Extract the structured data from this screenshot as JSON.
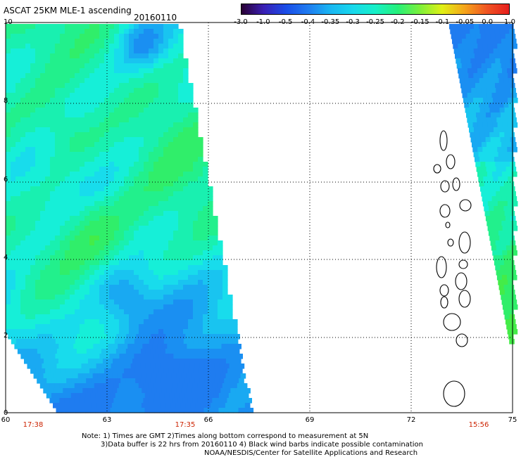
{
  "header": {
    "title": "ASCAT 25KM MLE-1 ascending",
    "date": "20160110"
  },
  "colorbar": {
    "ticks": [
      "-3.0",
      "-1.0",
      "-0.5",
      "-0.4",
      "-0.35",
      "-0.3",
      "-0.25",
      "-0.2",
      "-0.15",
      "-0.1",
      "-0.05",
      "0.0",
      "1.0"
    ],
    "colors": [
      "#2a0033",
      "#3a1fb5",
      "#1a4de8",
      "#1f7cf0",
      "#19b7f2",
      "#18d8ec",
      "#16f0c8",
      "#25f07a",
      "#7cf03a",
      "#e0f015",
      "#f5a51a",
      "#f05522",
      "#e61e1e"
    ]
  },
  "map": {
    "lat_labels": [
      "10",
      "8",
      "6",
      "4",
      "2",
      "0"
    ],
    "lon_labels": [
      "60",
      "63",
      "66",
      "69",
      "72",
      "75"
    ],
    "time_labels": [
      "17:38",
      "17:35",
      "15:56"
    ]
  },
  "notes": {
    "line1": "Note: 1) Times are GMT 2)Times along bottom correspond to measurement at 5N",
    "line2": "3)Data buffer is 22 hrs from 20160110 4) Black wind barbs indicate possible contamination",
    "line3": "NOAA/NESDIS/Center for Satellite Applications and Research"
  }
}
